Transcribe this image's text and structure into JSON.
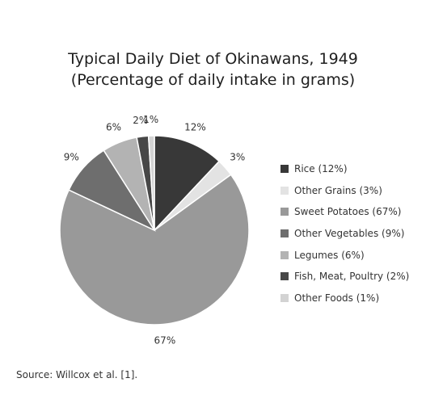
{
  "chart_data": {
    "type": "pie",
    "title": "Typical Daily Diet of Okinawans, 1949",
    "subtitle": "(Percentage of daily intake in grams)",
    "slices": [
      {
        "label": "Rice (12%)",
        "value": 12,
        "data_label": "12%",
        "color": "#383838"
      },
      {
        "label": "Other Grains (3%)",
        "value": 3,
        "data_label": "3%",
        "color": "#e3e3e3"
      },
      {
        "label": "Sweet Potatoes (67%)",
        "value": 67,
        "data_label": "67%",
        "color": "#999999"
      },
      {
        "label": "Other Vegetables (9%)",
        "value": 9,
        "data_label": "9%",
        "color": "#6e6e6e"
      },
      {
        "label": "Legumes (6%)",
        "value": 6,
        "data_label": "6%",
        "color": "#b3b3b3"
      },
      {
        "label": "Fish, Meat, Poultry (2%)",
        "value": 2,
        "data_label": "2%",
        "color": "#474747"
      },
      {
        "label": "Other Foods (1%)",
        "value": 1,
        "data_label": "1%",
        "color": "#d3d3d3"
      }
    ],
    "legend_position": "right"
  },
  "source": "Source: Willcox et al. [1]."
}
